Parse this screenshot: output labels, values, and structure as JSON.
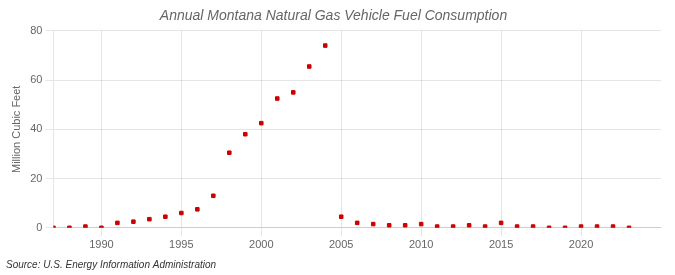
{
  "chart_data": {
    "type": "scatter",
    "title": "Annual Montana Natural Gas Vehicle Fuel Consumption",
    "ylabel": "Million Cubic Feet",
    "annotations": [
      "Source: U.S. Energy Information Administration"
    ],
    "color": "#cc0000",
    "marker": "square",
    "x": [
      1987,
      1988,
      1989,
      1990,
      1991,
      1992,
      1993,
      1994,
      1995,
      1996,
      1997,
      1998,
      1999,
      2000,
      2001,
      2002,
      2003,
      2004,
      2005,
      2006,
      2007,
      2008,
      2009,
      2010,
      2011,
      2012,
      2013,
      2014,
      2015,
      2016,
      2017,
      2018,
      2019,
      2020,
      2021,
      2022,
      2023
    ],
    "values": [
      0.0,
      0.0,
      0.5,
      0.0,
      2.0,
      2.5,
      3.5,
      4.5,
      6.0,
      7.5,
      13.0,
      30.5,
      38.0,
      42.5,
      52.5,
      55.0,
      65.5,
      74.0,
      4.5,
      2.0,
      1.5,
      1.0,
      1.0,
      1.5,
      0.5,
      0.5,
      1.0,
      0.5,
      2.0,
      0.5,
      0.5,
      0.0,
      0.0,
      0.5,
      0.5,
      0.5,
      0.0
    ],
    "xlim": [
      1987,
      2025
    ],
    "ylim": [
      0,
      80
    ],
    "xticks": [
      1990,
      1995,
      2000,
      2005,
      2010,
      2015,
      2020
    ],
    "yticks": [
      0,
      20,
      40,
      60,
      80
    ],
    "grid": true
  }
}
